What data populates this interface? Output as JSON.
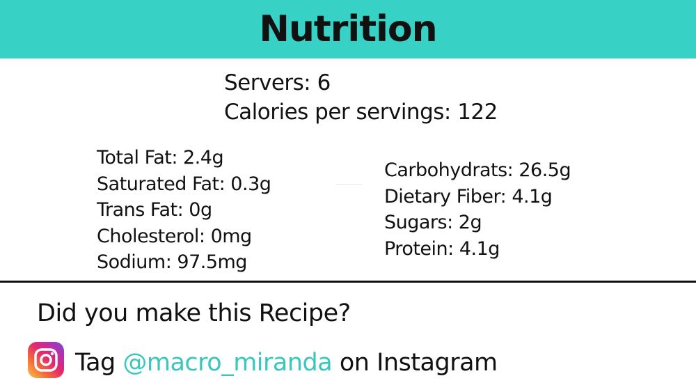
{
  "header": {
    "title": "Nutrition",
    "background_color": "#38d1c5"
  },
  "summary": {
    "servers": "Servers: 6",
    "calories": "Calories per servings: 122"
  },
  "nutrients_left": [
    "Total Fat: 2.4g",
    "Saturated Fat: 0.3g",
    "Trans Fat: 0g",
    "Cholesterol: 0mg",
    "Sodium: 97.5mg"
  ],
  "nutrients_right": [
    "Carbohydrats: 26.5g",
    "Dietary Fiber: 4.1g",
    "Sugars: 2g",
    "Protein: 4.1g"
  ],
  "cta": {
    "heading": "Did you make this Recipe?",
    "tag_prefix": "Tag ",
    "handle": "@macro_miranda",
    "tag_suffix": " on Instagram",
    "handle_color": "#38c7bd",
    "icon": "instagram-icon"
  }
}
